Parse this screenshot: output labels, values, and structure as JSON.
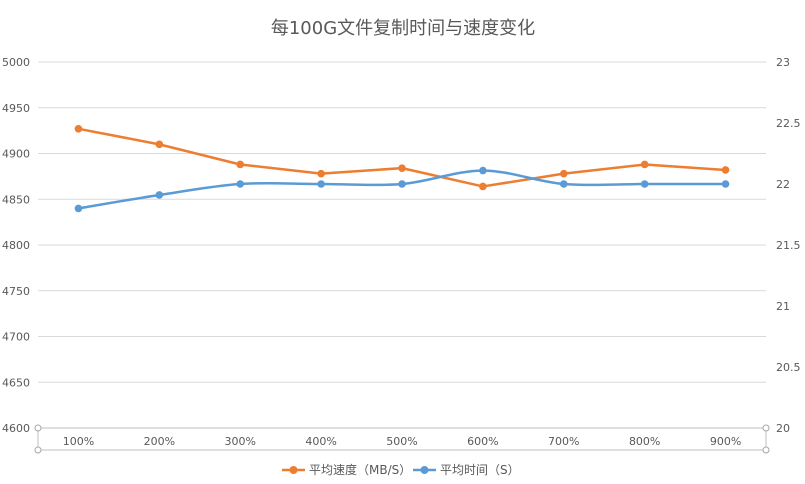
{
  "chart_data": {
    "type": "line",
    "title": "每100G文件复制时间与速度变化",
    "categories": [
      "100%",
      "200%",
      "300%",
      "400%",
      "500%",
      "600%",
      "700%",
      "800%",
      "900%"
    ],
    "y_left": {
      "ylim": [
        4600,
        5000
      ],
      "ticks": [
        "5000",
        "4950",
        "4900",
        "4850",
        "4800",
        "4750",
        "4700",
        "4650",
        "4600"
      ]
    },
    "y_right": {
      "ylim": [
        20,
        23
      ],
      "ticks": [
        "23",
        "22.5",
        "22",
        "21.5",
        "21",
        "20.5",
        "20"
      ]
    },
    "grid": true,
    "legend_position": "bottom",
    "series": [
      {
        "name": "平均速度（MB/S）",
        "axis": "left",
        "color": "#ed7d31",
        "smooth": false,
        "values": [
          4927,
          4910,
          4888,
          4878,
          4884,
          4864,
          4878,
          4888,
          4882
        ]
      },
      {
        "name": "平均时间（S）",
        "axis": "right",
        "color": "#5b9bd5",
        "smooth": true,
        "values": [
          21.8,
          21.91,
          22.0,
          22.0,
          22.0,
          22.11,
          22.0,
          22.0,
          22.0
        ]
      }
    ]
  }
}
